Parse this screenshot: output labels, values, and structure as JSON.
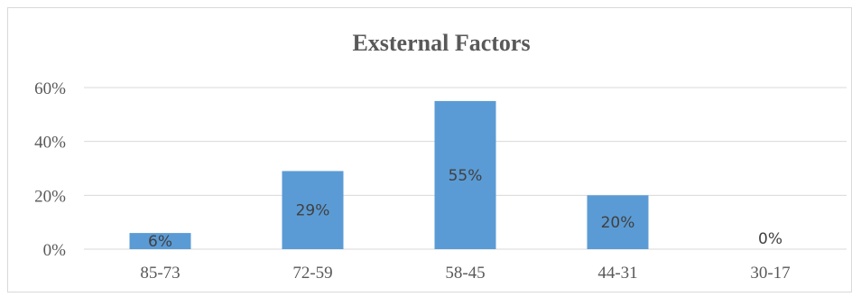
{
  "chart_data": {
    "type": "bar",
    "title": "Exsternal Factors",
    "categories": [
      "85-73",
      "72-59",
      "58-45",
      "44-31",
      "30-17"
    ],
    "values": [
      6,
      29,
      55,
      20,
      0
    ],
    "data_labels": [
      "6%",
      "29%",
      "55%",
      "20%",
      "0%"
    ],
    "yticks": [
      "0%",
      "20%",
      "40%",
      "60%"
    ],
    "ytick_values": [
      0,
      20,
      40,
      60
    ],
    "ylim": [
      0,
      60
    ],
    "grid": true,
    "legend": "none",
    "bar_color": "#5b9bd5",
    "grid_color": "#d9d9d9"
  }
}
